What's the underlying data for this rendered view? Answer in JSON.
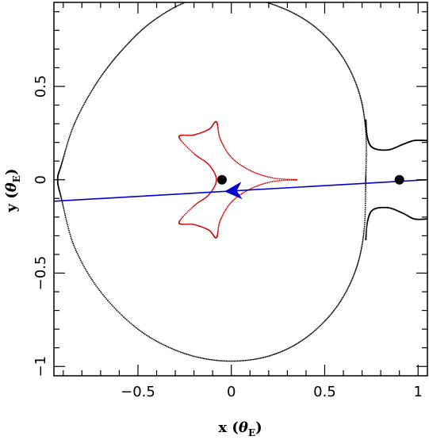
{
  "chart_data": {
    "type": "scatter",
    "xlabel": "x (θE)",
    "ylabel": "y (θE)",
    "xlabel_main": "x",
    "xlabel_theta": "θ",
    "xlabel_sub": "E",
    "ylabel_main": "y",
    "ylabel_theta": "θ",
    "ylabel_sub": "E",
    "xlim": [
      -0.95,
      1.05
    ],
    "ylim": [
      -1.05,
      0.95
    ],
    "x_ticks": [
      -0.5,
      0,
      0.5,
      1
    ],
    "x_tick_labels": [
      "−0.5",
      "0",
      "0.5",
      "1"
    ],
    "y_ticks": [
      -1,
      -0.5,
      0,
      0.5
    ],
    "y_tick_labels": [
      "−1",
      "−0.5",
      "0",
      "0.5"
    ],
    "grid": false,
    "colors": {
      "critical_curve": "#000000",
      "caustic": "#cc0000",
      "trajectory": "#0000cc"
    },
    "lens_masses": [
      {
        "x": -0.05,
        "y": 0.0
      },
      {
        "x": 0.9,
        "y": 0.0
      }
    ],
    "critical_curve": {
      "left_lobe": {
        "points": [
          [
            0.72,
            0.0
          ],
          [
            0.72,
            0.26
          ],
          [
            0.68,
            0.48
          ],
          [
            0.58,
            0.68
          ],
          [
            0.42,
            0.84
          ],
          [
            0.22,
            0.94
          ],
          [
            0.0,
            0.99
          ],
          [
            -0.22,
            0.96
          ],
          [
            -0.42,
            0.85
          ],
          [
            -0.58,
            0.7
          ],
          [
            -0.72,
            0.52
          ],
          [
            -0.84,
            0.3
          ],
          [
            -0.91,
            0.08
          ],
          [
            -0.93,
            0.0
          ],
          [
            -0.91,
            -0.1
          ],
          [
            -0.84,
            -0.36
          ],
          [
            -0.7,
            -0.6
          ],
          [
            -0.5,
            -0.8
          ],
          [
            -0.28,
            -0.92
          ],
          [
            -0.05,
            -0.97
          ],
          [
            0.18,
            -0.95
          ],
          [
            0.38,
            -0.86
          ],
          [
            0.55,
            -0.7
          ],
          [
            0.66,
            -0.5
          ],
          [
            0.71,
            -0.28
          ],
          [
            0.72,
            0.0
          ]
        ]
      },
      "neck_top": {
        "points": [
          [
            0.72,
            0.32
          ],
          [
            0.73,
            0.22
          ],
          [
            0.76,
            0.17
          ],
          [
            0.84,
            0.16
          ],
          [
            0.92,
            0.19
          ],
          [
            0.98,
            0.21
          ],
          [
            1.05,
            0.21
          ]
        ]
      },
      "neck_bottom": {
        "points": [
          [
            0.72,
            -0.32
          ],
          [
            0.73,
            -0.22
          ],
          [
            0.76,
            -0.16
          ],
          [
            0.84,
            -0.15
          ],
          [
            0.92,
            -0.18
          ],
          [
            0.98,
            -0.21
          ],
          [
            1.05,
            -0.21
          ]
        ]
      }
    },
    "caustic": {
      "points": [
        [
          0.35,
          0.0
        ],
        [
          0.22,
          0.01
        ],
        [
          0.1,
          0.05
        ],
        [
          0.0,
          0.12
        ],
        [
          -0.06,
          0.22
        ],
        [
          -0.08,
          0.31
        ],
        [
          -0.12,
          0.27
        ],
        [
          -0.2,
          0.24
        ],
        [
          -0.28,
          0.23
        ],
        [
          -0.2,
          0.14
        ],
        [
          -0.12,
          0.08
        ],
        [
          -0.08,
          0.0
        ],
        [
          -0.12,
          -0.08
        ],
        [
          -0.2,
          -0.14
        ],
        [
          -0.28,
          -0.23
        ],
        [
          -0.2,
          -0.24
        ],
        [
          -0.12,
          -0.27
        ],
        [
          -0.08,
          -0.31
        ],
        [
          -0.06,
          -0.22
        ],
        [
          0.0,
          -0.12
        ],
        [
          0.1,
          -0.05
        ],
        [
          0.22,
          -0.01
        ],
        [
          0.35,
          0.0
        ]
      ]
    },
    "trajectory": {
      "x": [
        -0.95,
        1.05
      ],
      "y": [
        -0.115,
        0.0
      ],
      "arrow": {
        "x": 0.01,
        "y": -0.06,
        "direction": "left"
      }
    }
  }
}
